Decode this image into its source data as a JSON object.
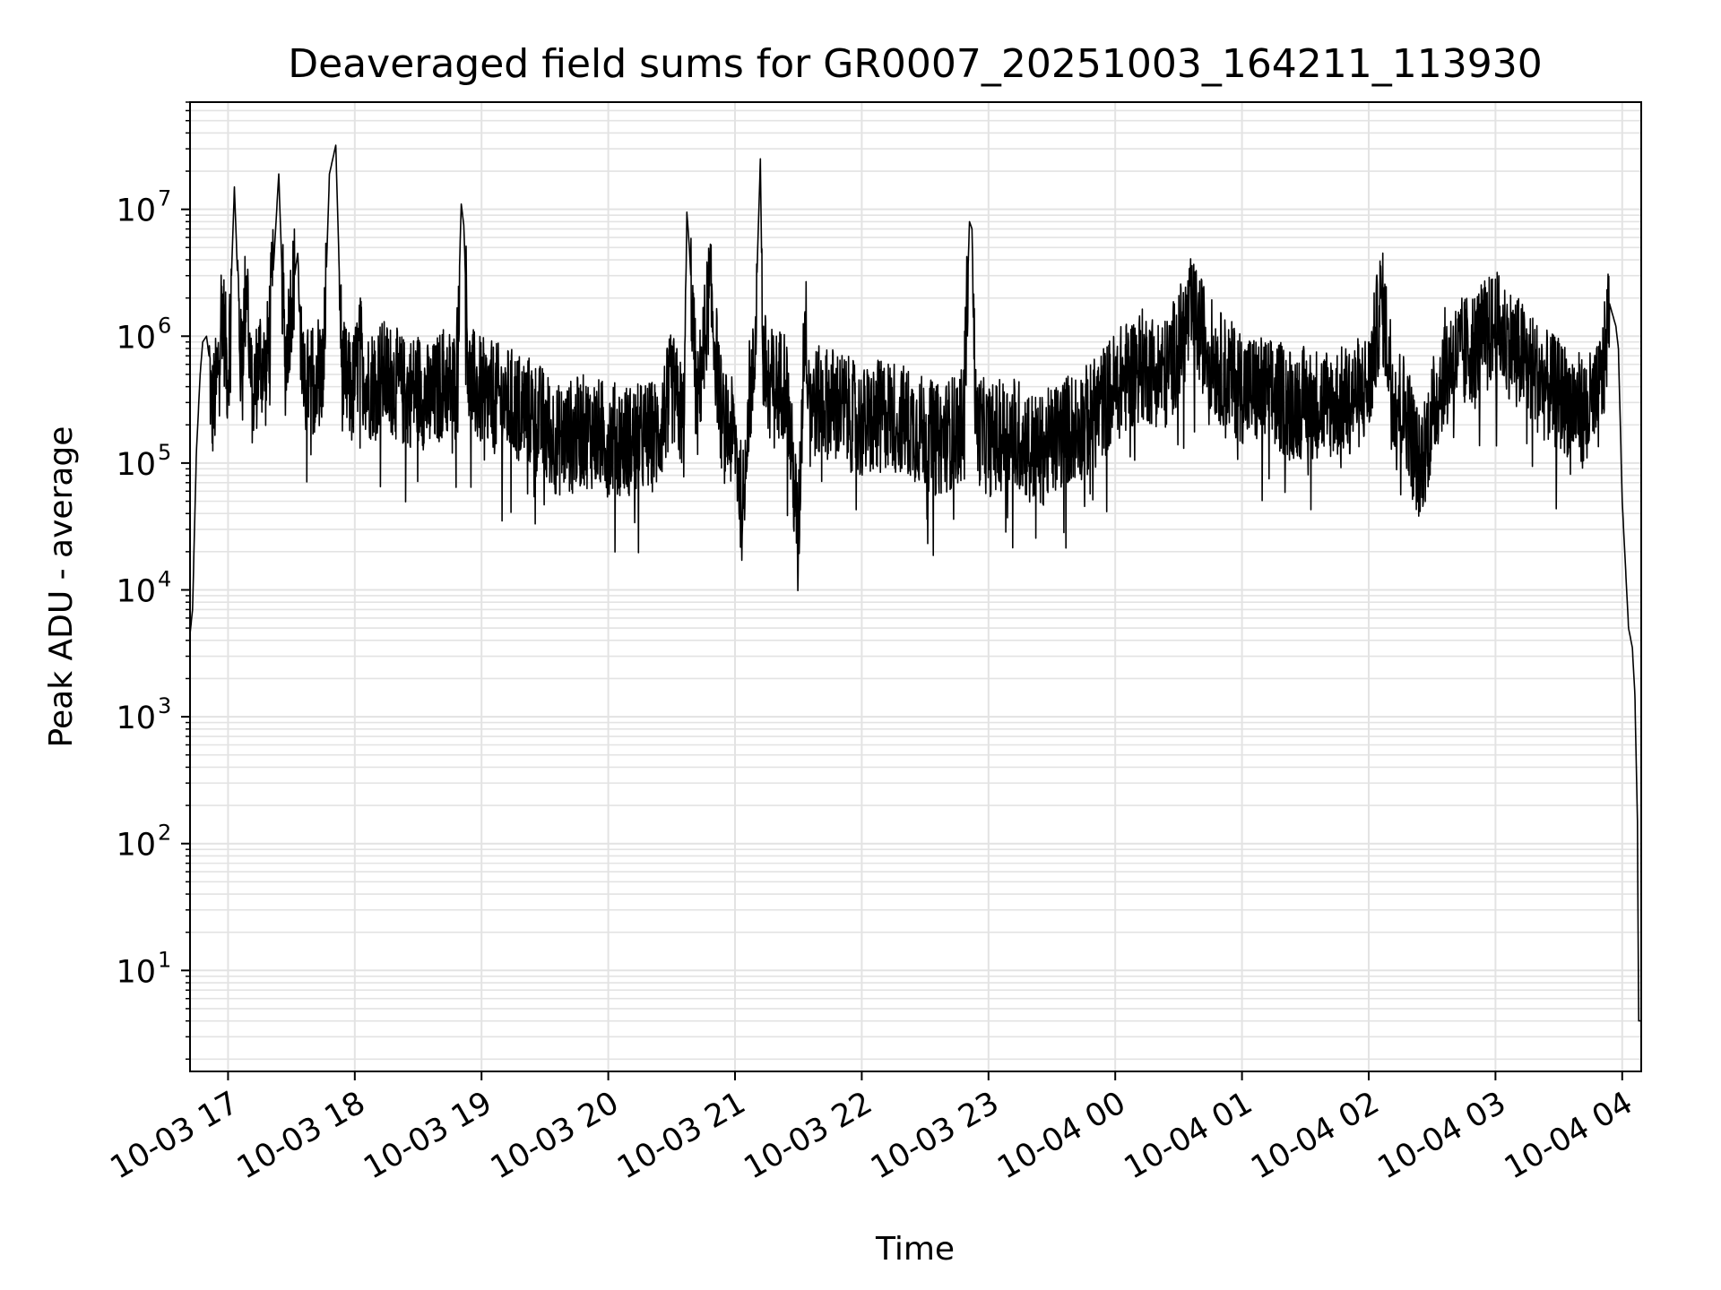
{
  "chart_data": {
    "type": "line",
    "title": "Deaveraged field sums for GR0007_20251003_164211_113930",
    "xlabel": "Time",
    "ylabel": "Peak ADU - average",
    "yscale": "log",
    "ylim": [
      1.6,
      70000000
    ],
    "xlim_hours": [
      -0.3,
      11.15
    ],
    "x_unit": "hours since 10-03 17:00",
    "grid": true,
    "grid_which": "both",
    "line_color": "#000000",
    "grid_color": "#e3e3e3",
    "x_ticks": [
      {
        "label": "10-03 17",
        "hour": 0
      },
      {
        "label": "10-03 18",
        "hour": 1
      },
      {
        "label": "10-03 19",
        "hour": 2
      },
      {
        "label": "10-03 20",
        "hour": 3
      },
      {
        "label": "10-03 21",
        "hour": 4
      },
      {
        "label": "10-03 22",
        "hour": 5
      },
      {
        "label": "10-03 23",
        "hour": 6
      },
      {
        "label": "10-04 00",
        "hour": 7
      },
      {
        "label": "10-04 01",
        "hour": 8
      },
      {
        "label": "10-04 02",
        "hour": 9
      },
      {
        "label": "10-04 03",
        "hour": 10
      },
      {
        "label": "10-04 04",
        "hour": 11
      }
    ],
    "y_ticks": [
      {
        "base": "10",
        "exp": "1",
        "value": 10
      },
      {
        "base": "10",
        "exp": "2",
        "value": 100
      },
      {
        "base": "10",
        "exp": "3",
        "value": 1000
      },
      {
        "base": "10",
        "exp": "4",
        "value": 10000
      },
      {
        "base": "10",
        "exp": "5",
        "value": 100000
      },
      {
        "base": "10",
        "exp": "6",
        "value": 1000000
      },
      {
        "base": "10",
        "exp": "7",
        "value": 10000000
      }
    ],
    "series": [
      {
        "name": "Peak ADU - average",
        "x": [
          -0.3,
          -0.28,
          -0.25,
          -0.22,
          -0.2,
          -0.17,
          -0.15,
          -0.13,
          -0.1,
          -0.08,
          -0.05,
          0.0,
          0.05,
          0.1,
          0.15,
          0.18,
          0.2,
          0.25,
          0.3,
          0.35,
          0.4,
          0.45,
          0.5,
          0.55,
          0.6,
          0.62,
          0.65,
          0.7,
          0.75,
          0.8,
          0.85,
          0.9,
          0.95,
          0.98,
          1.0,
          1.02,
          1.05,
          1.1,
          1.2,
          1.3,
          1.4,
          1.5,
          1.6,
          1.7,
          1.8,
          1.84,
          1.86,
          1.9,
          2.0,
          2.2,
          2.4,
          2.5,
          2.6,
          2.8,
          3.0,
          3.2,
          3.4,
          3.5,
          3.6,
          3.62,
          3.64,
          3.7,
          3.8,
          3.9,
          4.0,
          4.06,
          4.1,
          4.15,
          4.2,
          4.22,
          4.3,
          4.4,
          4.5,
          4.55,
          4.6,
          4.8,
          5.0,
          5.2,
          5.4,
          5.6,
          5.8,
          5.85,
          5.87,
          5.9,
          6.0,
          6.2,
          6.4,
          6.6,
          6.8,
          7.0,
          7.2,
          7.4,
          7.6,
          7.8,
          8.0,
          8.2,
          8.4,
          8.6,
          8.8,
          9.0,
          9.1,
          9.2,
          9.3,
          9.4,
          9.6,
          9.8,
          10.0,
          10.2,
          10.4,
          10.6,
          10.7,
          10.8,
          10.85,
          10.9,
          10.95,
          10.97,
          11.0,
          11.05,
          11.08,
          11.1,
          11.12,
          11.13,
          11.15
        ],
        "values": [
          4500,
          7000,
          120000,
          500000,
          900000,
          1000000,
          700000,
          250000,
          350000,
          500000,
          2000000,
          450000,
          15000000,
          600000,
          3000000,
          400000,
          350000,
          700000,
          500000,
          2500000,
          19000000,
          600000,
          2000000,
          4500000,
          300000,
          450000,
          400000,
          600000,
          500000,
          19000000,
          32000000,
          500000,
          400000,
          350000,
          450000,
          600000,
          800000,
          400000,
          500000,
          450000,
          350000,
          400000,
          300000,
          450000,
          400000,
          11000000,
          7500000,
          450000,
          350000,
          300000,
          250000,
          200000,
          150000,
          180000,
          160000,
          150000,
          170000,
          400000,
          200000,
          9500000,
          5000000,
          250000,
          2500000,
          200000,
          160000,
          40000,
          300000,
          500000,
          25000000,
          600000,
          400000,
          450000,
          25000,
          1500000,
          300000,
          300000,
          200000,
          250000,
          200000,
          150000,
          200000,
          8000000,
          7000000,
          200000,
          150000,
          180000,
          120000,
          180000,
          220000,
          400000,
          600000,
          500000,
          1500000,
          600000,
          400000,
          350000,
          300000,
          300000,
          300000,
          400000,
          2000000,
          350000,
          250000,
          90000,
          600000,
          800000,
          1200000,
          700000,
          400000,
          300000,
          250000,
          300000,
          500000,
          1800000,
          1200000,
          800000,
          50000,
          5000,
          3500,
          1500,
          150,
          4,
          4
        ]
      }
    ]
  }
}
